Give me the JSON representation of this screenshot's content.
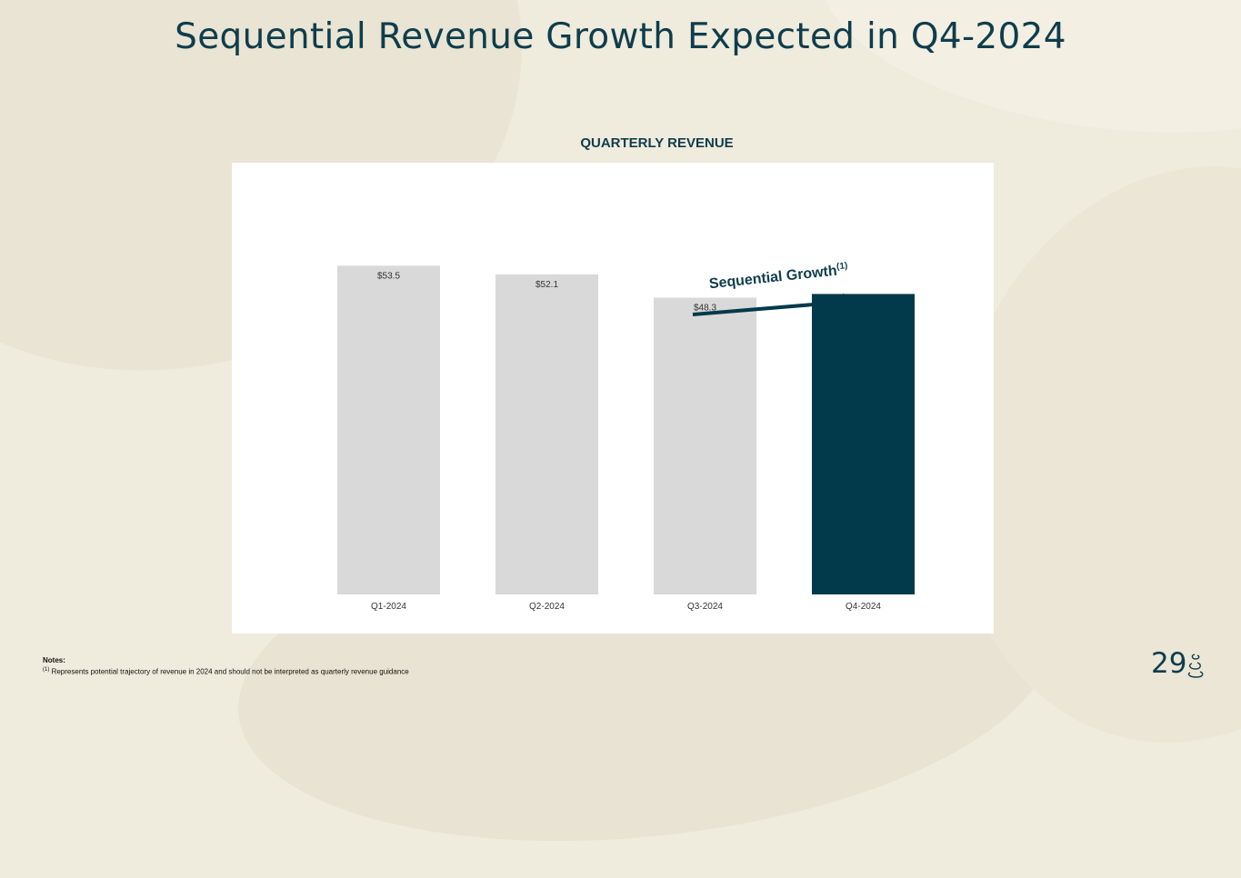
{
  "slide": {
    "title": "Sequential Revenue Growth Expected in Q4-2024",
    "page_number": "29"
  },
  "notes": {
    "heading": "Notes:",
    "footnote_marker": "(1)",
    "footnote": "Represents potential trajectory of revenue in 2024 and should not be interpreted as quarterly revenue guidance"
  },
  "colors": {
    "bar_gray": "#d9d9d9",
    "bar_highlight": "#033a4b",
    "text_dark": "#0f3d4c"
  },
  "chart_data": {
    "type": "bar",
    "title": "QUARTERLY REVENUE",
    "categories": [
      "Q1-2024",
      "Q2-2024",
      "Q3-2024",
      "Q4-2024"
    ],
    "values": [
      53.5,
      52.1,
      48.3,
      48.9
    ],
    "data_labels": [
      "$53.5",
      "$52.1",
      "$48.3",
      ""
    ],
    "highlight_index": 3,
    "ylim": [
      0,
      76
    ],
    "xlabel": "",
    "ylabel": "",
    "grid": false,
    "annotation": {
      "text": "Sequential Growth",
      "superscript": "(1)",
      "from_category": "Q3-2024",
      "to_category": "Q4-2024"
    }
  }
}
